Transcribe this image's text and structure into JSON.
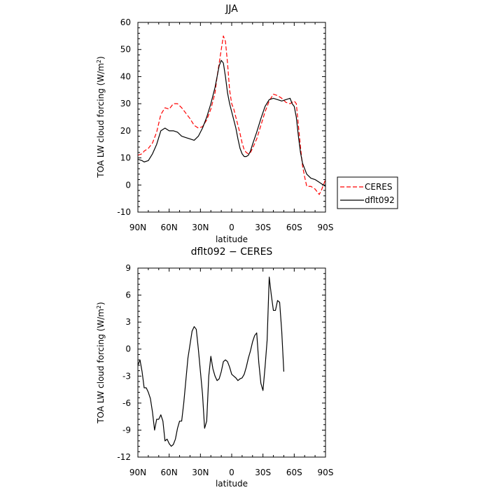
{
  "chart_data": [
    {
      "type": "line",
      "title": "JJA",
      "xlabel": "latitude",
      "ylabel": "TOA LW cloud forcing (W/m²)",
      "ylabel_base": "TOA LW cloud forcing (W/m",
      "ylabel_sup": "2",
      "ylabel_end": ")",
      "xlim": [
        90,
        -90
      ],
      "ylim": [
        -10,
        60
      ],
      "xticks": [
        90,
        60,
        30,
        0,
        -30,
        -60,
        -90
      ],
      "xtick_labels": [
        "90N",
        "60N",
        "30N",
        "0",
        "30S",
        "60S",
        "90S"
      ],
      "yticks": [
        -10,
        0,
        10,
        20,
        30,
        40,
        50,
        60
      ],
      "ytick_labels": [
        "-10",
        "0",
        "10",
        "20",
        "30",
        "40",
        "50",
        "60"
      ],
      "legend": "outside-right",
      "series": [
        {
          "name": "CERES",
          "style": "dashed",
          "color": "#ff0000",
          "points": [
            [
              90,
              11
            ],
            [
              86,
              11.5
            ],
            [
              84,
              12.5
            ],
            [
              80,
              13.5
            ],
            [
              76,
              15.5
            ],
            [
              72,
              19.5
            ],
            [
              68,
              26
            ],
            [
              64,
              28.5
            ],
            [
              60,
              28
            ],
            [
              56,
              30
            ],
            [
              52,
              30
            ],
            [
              48,
              28.5
            ],
            [
              44,
              26.5
            ],
            [
              40,
              24.5
            ],
            [
              36,
              22
            ],
            [
              32,
              21
            ],
            [
              28,
              21.5
            ],
            [
              24,
              24
            ],
            [
              20,
              28
            ],
            [
              16,
              34
            ],
            [
              14,
              40
            ],
            [
              12,
              45
            ],
            [
              10,
              50
            ],
            [
              8,
              55
            ],
            [
              6,
              53
            ],
            [
              4,
              45
            ],
            [
              2,
              35
            ],
            [
              0,
              30
            ],
            [
              -2,
              28
            ],
            [
              -4,
              25
            ],
            [
              -6,
              22
            ],
            [
              -8,
              19
            ],
            [
              -10,
              15.5
            ],
            [
              -12,
              13
            ],
            [
              -14,
              12
            ],
            [
              -16,
              11.5
            ],
            [
              -18,
              12
            ],
            [
              -20,
              13.5
            ],
            [
              -24,
              17
            ],
            [
              -28,
              22
            ],
            [
              -32,
              27
            ],
            [
              -36,
              31
            ],
            [
              -40,
              33.5
            ],
            [
              -44,
              33
            ],
            [
              -48,
              32
            ],
            [
              -52,
              30.5
            ],
            [
              -56,
              30
            ],
            [
              -60,
              31
            ],
            [
              -62,
              30
            ],
            [
              -64,
              22
            ],
            [
              -66,
              14
            ],
            [
              -68,
              7
            ],
            [
              -70,
              3
            ],
            [
              -72,
              -0.5
            ],
            [
              -76,
              -0.5
            ],
            [
              -80,
              -1.5
            ],
            [
              -84,
              -3.5
            ],
            [
              -86,
              -2
            ],
            [
              -90,
              2
            ]
          ]
        },
        {
          "name": "dflt092",
          "style": "solid",
          "color": "#000000",
          "points": [
            [
              90,
              9.5
            ],
            [
              86,
              9
            ],
            [
              84,
              8.5
            ],
            [
              80,
              9
            ],
            [
              76,
              11.5
            ],
            [
              72,
              15
            ],
            [
              68,
              20
            ],
            [
              64,
              21
            ],
            [
              60,
              20
            ],
            [
              56,
              20
            ],
            [
              52,
              19.5
            ],
            [
              48,
              18
            ],
            [
              44,
              17.5
            ],
            [
              40,
              17
            ],
            [
              36,
              16.5
            ],
            [
              32,
              18
            ],
            [
              28,
              21
            ],
            [
              24,
              25
            ],
            [
              20,
              30
            ],
            [
              16,
              36
            ],
            [
              14,
              40
            ],
            [
              12,
              44
            ],
            [
              10,
              46
            ],
            [
              8,
              45
            ],
            [
              6,
              40
            ],
            [
              4,
              34
            ],
            [
              2,
              30
            ],
            [
              0,
              27
            ],
            [
              -2,
              24
            ],
            [
              -4,
              21
            ],
            [
              -6,
              17
            ],
            [
              -8,
              13.5
            ],
            [
              -10,
              11.5
            ],
            [
              -12,
              10.5
            ],
            [
              -14,
              10.5
            ],
            [
              -16,
              11
            ],
            [
              -18,
              12.5
            ],
            [
              -20,
              15
            ],
            [
              -24,
              19.5
            ],
            [
              -28,
              24.5
            ],
            [
              -32,
              29
            ],
            [
              -36,
              31.5
            ],
            [
              -40,
              32
            ],
            [
              -44,
              31.5
            ],
            [
              -48,
              31
            ],
            [
              -52,
              31.5
            ],
            [
              -56,
              32
            ],
            [
              -58,
              30
            ],
            [
              -60,
              29
            ],
            [
              -62,
              25
            ],
            [
              -64,
              18
            ],
            [
              -66,
              12
            ],
            [
              -68,
              8
            ],
            [
              -70,
              6
            ],
            [
              -72,
              4
            ],
            [
              -76,
              2.5
            ],
            [
              -80,
              2
            ],
            [
              -84,
              1
            ],
            [
              -86,
              0.5
            ],
            [
              -88,
              0
            ],
            [
              -90,
              -0.5
            ]
          ]
        }
      ]
    },
    {
      "type": "line",
      "title": "dflt092 − CERES",
      "xlabel": "latitude",
      "ylabel": "TOA LW cloud forcing (W/m²)",
      "ylabel_base": "TOA LW cloud forcing (W/m",
      "ylabel_sup": "2",
      "ylabel_end": ")",
      "xlim": [
        90,
        -90
      ],
      "ylim": [
        -12,
        9
      ],
      "xticks": [
        90,
        60,
        30,
        0,
        -30,
        -60,
        -90
      ],
      "xtick_labels": [
        "90N",
        "60N",
        "30N",
        "0",
        "30S",
        "60S",
        "90S"
      ],
      "yticks": [
        -12,
        -9,
        -6,
        -3,
        0,
        3,
        6,
        9
      ],
      "ytick_labels": [
        "-12",
        "-9",
        "-6",
        "-3",
        "0",
        "3",
        "6",
        "9"
      ],
      "series": [
        {
          "style": "solid",
          "color": "#000000",
          "points": [
            [
              90,
              -1.8
            ],
            [
              88,
              -1.2
            ],
            [
              86,
              -2.5
            ],
            [
              84,
              -4.3
            ],
            [
              82,
              -4.3
            ],
            [
              80,
              -4.8
            ],
            [
              78,
              -5.5
            ],
            [
              76,
              -7
            ],
            [
              74,
              -9
            ],
            [
              72,
              -7.8
            ],
            [
              70,
              -7.8
            ],
            [
              68,
              -7.3
            ],
            [
              66,
              -8
            ],
            [
              64,
              -10.2
            ],
            [
              62,
              -10
            ],
            [
              60,
              -10.5
            ],
            [
              58,
              -10.8
            ],
            [
              56,
              -10.6
            ],
            [
              54,
              -10
            ],
            [
              52,
              -8.8
            ],
            [
              50,
              -8
            ],
            [
              48,
              -8
            ],
            [
              46,
              -6
            ],
            [
              44,
              -3.5
            ],
            [
              42,
              -1
            ],
            [
              40,
              0.5
            ],
            [
              38,
              2
            ],
            [
              36,
              2.5
            ],
            [
              34,
              2.2
            ],
            [
              32,
              0
            ],
            [
              30,
              -2.5
            ],
            [
              28,
              -5
            ],
            [
              26,
              -8.8
            ],
            [
              24,
              -8
            ],
            [
              22,
              -3
            ],
            [
              20,
              -0.8
            ],
            [
              18,
              -2.2
            ],
            [
              16,
              -3
            ],
            [
              14,
              -3.5
            ],
            [
              12,
              -3.3
            ],
            [
              10,
              -2.5
            ],
            [
              8,
              -1.4
            ],
            [
              6,
              -1.2
            ],
            [
              4,
              -1.4
            ],
            [
              2,
              -2
            ],
            [
              0,
              -2.8
            ],
            [
              -2,
              -3
            ],
            [
              -4,
              -3.2
            ],
            [
              -6,
              -3.5
            ],
            [
              -8,
              -3.3
            ],
            [
              -10,
              -3.2
            ],
            [
              -12,
              -2.8
            ],
            [
              -14,
              -2
            ],
            [
              -16,
              -1
            ],
            [
              -18,
              -0.2
            ],
            [
              -20,
              0.8
            ],
            [
              -22,
              1.5
            ],
            [
              -24,
              1.8
            ],
            [
              -26,
              -1.5
            ],
            [
              -28,
              -3.8
            ],
            [
              -30,
              -4.6
            ],
            [
              -32,
              -2
            ],
            [
              -34,
              1
            ],
            [
              -36,
              8
            ],
            [
              -38,
              6
            ],
            [
              -40,
              4.3
            ],
            [
              -42,
              4.3
            ],
            [
              -44,
              5.4
            ],
            [
              -46,
              5.2
            ],
            [
              -48,
              2
            ],
            [
              -50,
              -2.5
            ]
          ]
        }
      ]
    }
  ]
}
